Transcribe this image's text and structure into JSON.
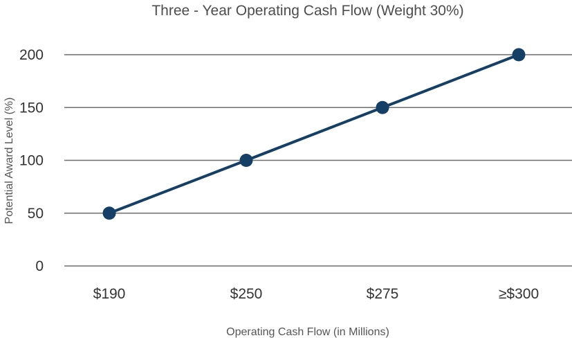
{
  "chart_data": {
    "type": "line",
    "title": "Three - Year Operating Cash Flow (Weight 30%)",
    "xlabel": "Operating Cash Flow (in Millions)",
    "ylabel": "Potential Award Level (%)",
    "categories": [
      "$190",
      "$250",
      "$275",
      "≥$300"
    ],
    "series": [
      {
        "values": [
          50,
          100,
          150,
          200
        ]
      }
    ],
    "ylim": [
      0,
      200
    ],
    "yticks": [
      0,
      50,
      100,
      150,
      200
    ],
    "grid": true,
    "legend": "none",
    "colors": {
      "series": "#163f66",
      "grid": "#6e6e6e"
    }
  }
}
